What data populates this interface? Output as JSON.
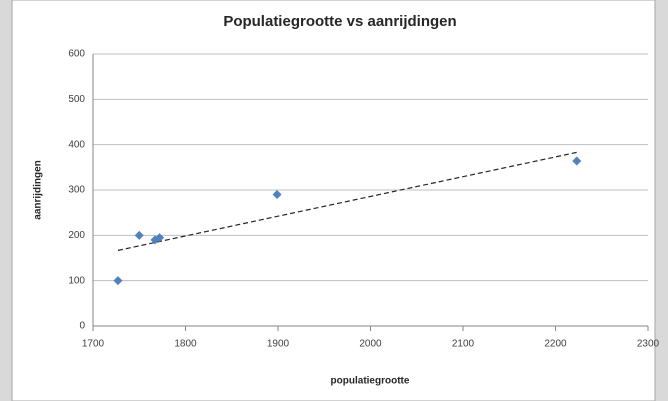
{
  "chart_data": {
    "type": "scatter",
    "title": "Populatiegrootte vs aanrijdingen",
    "x_label": "populatiegrootte",
    "y_label": "aanrijdingen",
    "series": [
      {
        "name": "aanrijdingen",
        "color": "#4f81bd",
        "x": [
          1727,
          1750,
          1767,
          1772,
          1899,
          2223
        ],
        "values": [
          100,
          200,
          190,
          195,
          290,
          364
        ]
      }
    ],
    "trendline": "linear",
    "xlim": [
      1700,
      2300
    ],
    "xticks": [
      1700,
      1800,
      1900,
      2000,
      2100,
      2200,
      2300
    ],
    "ylim": [
      0,
      600
    ],
    "yticks": [
      0,
      100,
      200,
      300,
      400,
      500,
      600
    ],
    "grid": true
  }
}
